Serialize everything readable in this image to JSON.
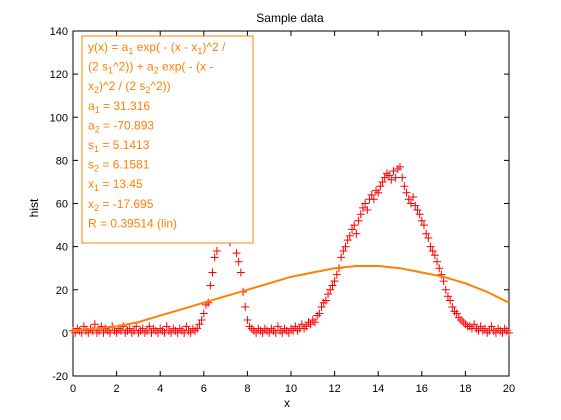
{
  "chart_data": {
    "type": "scatter",
    "title": "Sample data",
    "xlabel": "x",
    "ylabel": "hist",
    "xlim": [
      0,
      20
    ],
    "ylim": [
      -20,
      140
    ],
    "xticks": [
      0,
      2,
      4,
      6,
      8,
      10,
      12,
      14,
      16,
      18,
      20
    ],
    "yticks": [
      -20,
      0,
      20,
      40,
      60,
      80,
      100,
      120,
      140
    ],
    "grid": false,
    "colors": {
      "data": "#ff0000",
      "fit": "#ff8000",
      "annotation": "#ff8000"
    },
    "series": [
      {
        "kind": "points",
        "marker": "+",
        "points": [
          [
            0.0,
            1
          ],
          [
            0.1,
            0
          ],
          [
            0.2,
            2
          ],
          [
            0.3,
            1
          ],
          [
            0.4,
            0
          ],
          [
            0.5,
            3
          ],
          [
            0.6,
            1
          ],
          [
            0.7,
            0
          ],
          [
            0.8,
            2
          ],
          [
            0.9,
            1
          ],
          [
            1.0,
            4
          ],
          [
            1.1,
            0
          ],
          [
            1.2,
            1
          ],
          [
            1.3,
            3
          ],
          [
            1.4,
            0
          ],
          [
            1.5,
            2
          ],
          [
            1.6,
            1
          ],
          [
            1.7,
            0
          ],
          [
            1.8,
            3
          ],
          [
            1.9,
            1
          ],
          [
            2.0,
            0
          ],
          [
            2.1,
            2
          ],
          [
            2.2,
            1
          ],
          [
            2.3,
            3
          ],
          [
            2.4,
            0
          ],
          [
            2.5,
            1
          ],
          [
            2.6,
            2
          ],
          [
            2.7,
            0
          ],
          [
            2.8,
            1
          ],
          [
            2.9,
            3
          ],
          [
            3.0,
            0
          ],
          [
            3.1,
            1
          ],
          [
            3.2,
            2
          ],
          [
            3.3,
            0
          ],
          [
            3.4,
            1
          ],
          [
            3.5,
            3
          ],
          [
            3.6,
            0
          ],
          [
            3.7,
            2
          ],
          [
            3.8,
            1
          ],
          [
            3.9,
            0
          ],
          [
            4.0,
            2
          ],
          [
            4.1,
            1
          ],
          [
            4.2,
            0
          ],
          [
            4.3,
            3
          ],
          [
            4.4,
            1
          ],
          [
            4.5,
            0
          ],
          [
            4.6,
            2
          ],
          [
            4.7,
            1
          ],
          [
            4.8,
            0
          ],
          [
            4.9,
            2
          ],
          [
            5.0,
            1
          ],
          [
            5.1,
            0
          ],
          [
            5.2,
            3
          ],
          [
            5.3,
            1
          ],
          [
            5.4,
            0
          ],
          [
            5.5,
            2
          ],
          [
            5.6,
            1
          ],
          [
            5.7,
            2
          ],
          [
            5.8,
            4
          ],
          [
            5.9,
            6
          ],
          [
            6.0,
            9
          ],
          [
            6.1,
            13
          ],
          [
            6.2,
            14
          ],
          [
            6.3,
            22
          ],
          [
            6.4,
            28
          ],
          [
            6.5,
            35
          ],
          [
            6.6,
            38
          ],
          [
            6.8,
            45
          ],
          [
            7.0,
            47
          ],
          [
            7.2,
            42
          ],
          [
            7.5,
            37
          ],
          [
            7.6,
            33
          ],
          [
            7.7,
            28
          ],
          [
            7.8,
            19
          ],
          [
            7.9,
            12
          ],
          [
            8.0,
            6
          ],
          [
            8.1,
            3
          ],
          [
            8.2,
            2
          ],
          [
            8.3,
            1
          ],
          [
            8.4,
            0
          ],
          [
            8.5,
            2
          ],
          [
            8.6,
            1
          ],
          [
            8.7,
            0
          ],
          [
            8.8,
            2
          ],
          [
            8.9,
            1
          ],
          [
            9.0,
            0
          ],
          [
            9.1,
            2
          ],
          [
            9.2,
            1
          ],
          [
            9.3,
            0
          ],
          [
            9.4,
            3
          ],
          [
            9.5,
            1
          ],
          [
            9.6,
            0
          ],
          [
            9.7,
            2
          ],
          [
            9.8,
            1
          ],
          [
            9.9,
            0
          ],
          [
            10.0,
            2
          ],
          [
            10.1,
            1
          ],
          [
            10.2,
            3
          ],
          [
            10.3,
            1
          ],
          [
            10.4,
            2
          ],
          [
            10.5,
            4
          ],
          [
            10.6,
            2
          ],
          [
            10.7,
            3
          ],
          [
            10.8,
            5
          ],
          [
            10.9,
            4
          ],
          [
            11.0,
            6
          ],
          [
            11.1,
            5
          ],
          [
            11.2,
            8
          ],
          [
            11.3,
            9
          ],
          [
            11.4,
            12
          ],
          [
            11.5,
            14
          ],
          [
            11.6,
            15
          ],
          [
            11.7,
            18
          ],
          [
            11.8,
            20
          ],
          [
            11.9,
            22
          ],
          [
            12.0,
            24
          ],
          [
            12.1,
            27
          ],
          [
            12.2,
            30
          ],
          [
            12.3,
            35
          ],
          [
            12.4,
            38
          ],
          [
            12.5,
            40
          ],
          [
            12.6,
            43
          ],
          [
            12.7,
            45
          ],
          [
            12.8,
            48
          ],
          [
            12.9,
            50
          ],
          [
            13.0,
            46
          ],
          [
            13.1,
            52
          ],
          [
            13.2,
            55
          ],
          [
            13.3,
            58
          ],
          [
            13.4,
            60
          ],
          [
            13.5,
            57
          ],
          [
            13.6,
            62
          ],
          [
            13.7,
            64
          ],
          [
            13.8,
            62
          ],
          [
            13.9,
            66
          ],
          [
            14.0,
            65
          ],
          [
            14.1,
            68
          ],
          [
            14.2,
            70
          ],
          [
            14.3,
            72
          ],
          [
            14.4,
            74
          ],
          [
            14.5,
            73
          ],
          [
            14.6,
            71
          ],
          [
            14.7,
            75
          ],
          [
            14.8,
            72
          ],
          [
            14.9,
            76
          ],
          [
            15.0,
            77
          ],
          [
            15.1,
            72
          ],
          [
            15.2,
            68
          ],
          [
            15.3,
            65
          ],
          [
            15.4,
            62
          ],
          [
            15.5,
            60
          ],
          [
            15.6,
            63
          ],
          [
            15.7,
            59
          ],
          [
            15.8,
            57
          ],
          [
            15.9,
            55
          ],
          [
            16.0,
            52
          ],
          [
            16.1,
            50
          ],
          [
            16.2,
            46
          ],
          [
            16.3,
            44
          ],
          [
            16.4,
            40
          ],
          [
            16.5,
            38
          ],
          [
            16.6,
            36
          ],
          [
            16.7,
            33
          ],
          [
            16.8,
            30
          ],
          [
            16.9,
            27
          ],
          [
            17.0,
            24
          ],
          [
            17.1,
            20
          ],
          [
            17.2,
            17
          ],
          [
            17.3,
            15
          ],
          [
            17.4,
            12
          ],
          [
            17.5,
            10
          ],
          [
            17.6,
            9
          ],
          [
            17.7,
            7
          ],
          [
            17.8,
            6
          ],
          [
            17.9,
            5
          ],
          [
            18.0,
            4
          ],
          [
            18.1,
            3
          ],
          [
            18.2,
            3
          ],
          [
            18.3,
            2
          ],
          [
            18.4,
            4
          ],
          [
            18.5,
            2
          ],
          [
            18.6,
            1
          ],
          [
            18.7,
            3
          ],
          [
            18.8,
            1
          ],
          [
            18.9,
            2
          ],
          [
            19.0,
            0
          ],
          [
            19.1,
            1
          ],
          [
            19.2,
            3
          ],
          [
            19.3,
            1
          ],
          [
            19.4,
            0
          ],
          [
            19.5,
            2
          ],
          [
            19.6,
            1
          ],
          [
            19.7,
            0
          ],
          [
            19.8,
            2
          ],
          [
            19.9,
            1
          ],
          [
            20.0,
            0
          ]
        ]
      },
      {
        "kind": "line",
        "x": [
          0,
          1,
          2,
          3,
          4,
          5,
          6,
          7,
          8,
          9,
          10,
          11,
          12,
          13,
          14,
          15,
          16,
          17,
          18,
          19,
          20
        ],
        "y": [
          1,
          2,
          3,
          5,
          8,
          11,
          14,
          17,
          20,
          23,
          26,
          28,
          30,
          31,
          31,
          30,
          28,
          26,
          23,
          19,
          14
        ]
      }
    ],
    "annotation_lines": [
      "y(x) = a_1  exp( - (x - x_1)^2 /",
      "(2 s_1^2)) + a_2 exp( - (x -",
      "x_2)^2 / (2 s_2^2))",
      "a_1 = 31.316",
      "a_2 = -70.893",
      "s_1 = 5.1413",
      "s_2 = 6.1581",
      "x_1 = 13.45",
      "x_2 = -17.695",
      "R = 0.39514  (lin)"
    ]
  }
}
